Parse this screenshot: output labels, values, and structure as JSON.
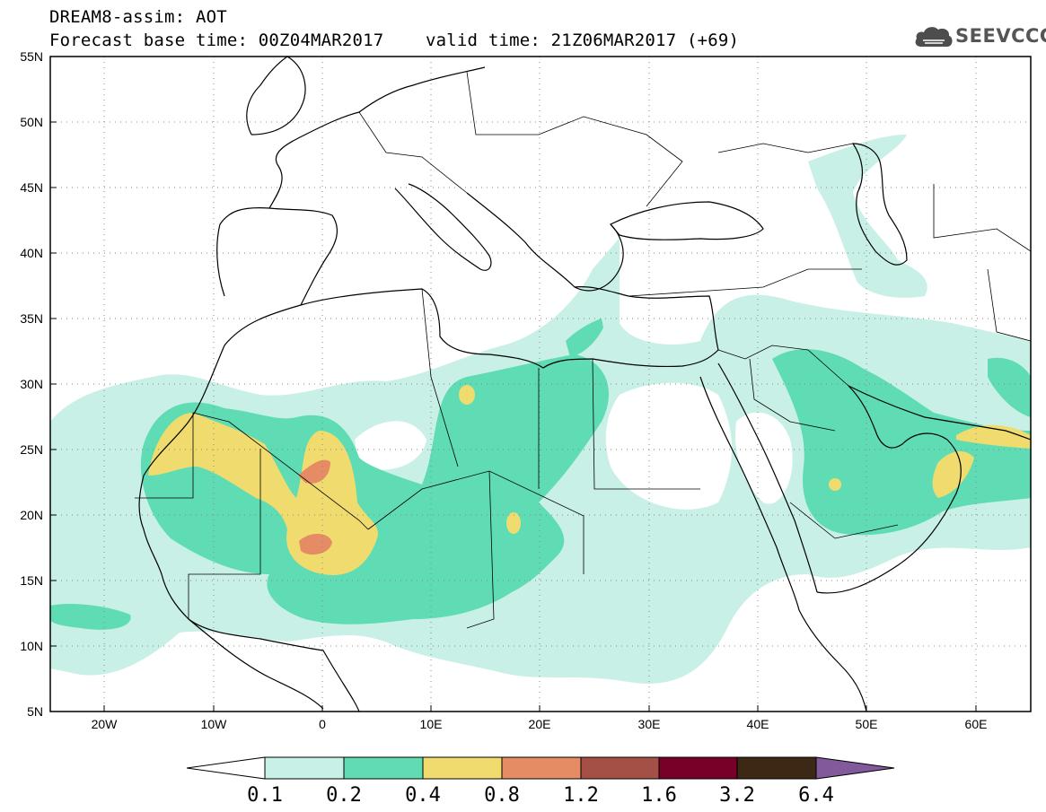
{
  "header": {
    "title_line1": "DREAM8-assim: AOT",
    "title_line2": "Forecast base time: 00Z04MAR2017    valid time: 21Z06MAR2017 (+69)",
    "logo_text": "SEEVCCC",
    "logo_icon": "cloud-icon"
  },
  "map": {
    "projection": "lat-lon",
    "lon_range": [
      -25,
      65
    ],
    "lat_range": [
      5,
      55
    ],
    "gridlines": "dotted",
    "lat_labels": [
      "55N",
      "50N",
      "45N",
      "40N",
      "35N",
      "30N",
      "25N",
      "20N",
      "15N",
      "10N",
      "5N"
    ],
    "lon_labels": [
      "20W",
      "10W",
      "0",
      "10E",
      "20E",
      "30E",
      "40E",
      "50E",
      "60E"
    ]
  },
  "colorbar": {
    "labels": [
      "0.1",
      "0.2",
      "0.4",
      "0.8",
      "1.2",
      "1.6",
      "3.2",
      "6.4"
    ],
    "colors": [
      "#c8f0e6",
      "#5fdcb4",
      "#f0dc6e",
      "#e68c64",
      "#a55046",
      "#780028",
      "#3c2814",
      "#825a9b"
    ],
    "under_color": "#ffffff"
  }
}
